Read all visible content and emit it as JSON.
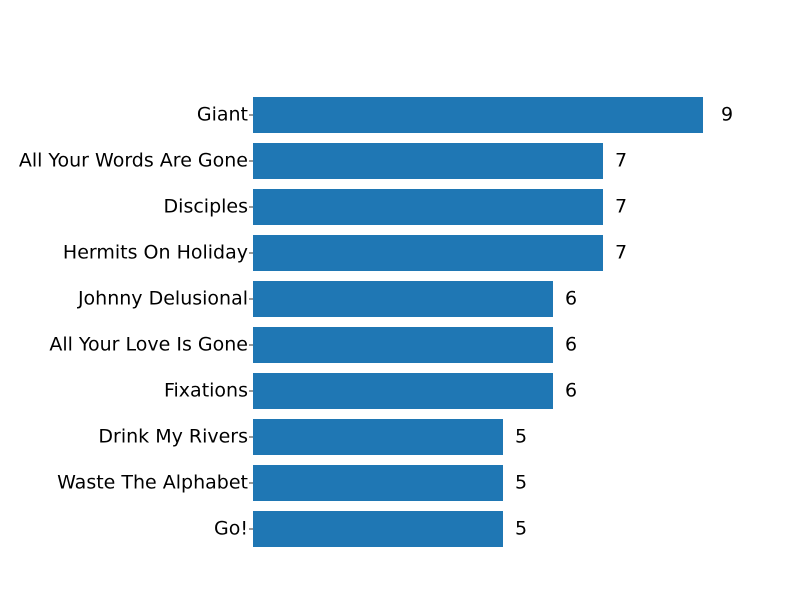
{
  "chart_data": {
    "type": "bar",
    "orientation": "horizontal",
    "title": "",
    "xlabel": "",
    "ylabel": "",
    "categories": [
      "Giant",
      "All Your Words Are Gone",
      "Disciples",
      "Hermits On Holiday",
      "Johnny Delusional",
      "All Your Love Is Gone",
      "Fixations",
      "Drink My Rivers",
      "Waste The Alphabet",
      "Go!"
    ],
    "values": [
      9,
      7,
      7,
      7,
      6,
      6,
      6,
      5,
      5,
      5
    ],
    "value_labels": [
      "9",
      "7",
      "7",
      "7",
      "6",
      "6",
      "6",
      "5",
      "5",
      "5"
    ],
    "xlim": [
      0,
      9
    ],
    "grid": false,
    "legend": "none",
    "bar_color": "#1f77b4"
  }
}
